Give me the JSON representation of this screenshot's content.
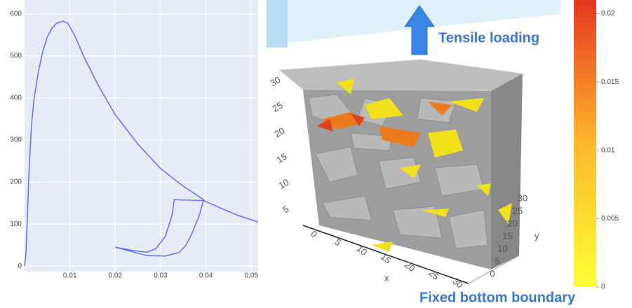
{
  "chart_data": [
    {
      "type": "line",
      "x": [
        0,
        0.0003,
        0.0006,
        0.001,
        0.0015,
        0.002,
        0.003,
        0.004,
        0.005,
        0.006,
        0.007,
        0.0085,
        0.0095,
        0.011,
        0.013,
        0.016,
        0.02,
        0.025,
        0.03,
        0.035,
        0.0395,
        0.0385,
        0.037,
        0.0355,
        0.034,
        0.031,
        0.027,
        0.02,
        0.024,
        0.027,
        0.029,
        0.031,
        0.0325,
        0.033,
        0.0395,
        0.043,
        0.047,
        0.0515
      ],
      "series": [
        {
          "color": "#636efa",
          "values": [
            0,
            30,
            110,
            230,
            330,
            390,
            460,
            510,
            545,
            565,
            577,
            583,
            578,
            550,
            500,
            435,
            360,
            290,
            232,
            190,
            158,
            120,
            80,
            48,
            32,
            24,
            25,
            45,
            37,
            33,
            42,
            70,
            120,
            158,
            156,
            139,
            121,
            105
          ]
        }
      ],
      "xlim": [
        0,
        0.0515
      ],
      "ylim": [
        -13,
        633
      ],
      "xticks": [
        0.01,
        0.02,
        0.03,
        0.04,
        0.05
      ],
      "yticks": [
        0,
        100,
        200,
        300,
        400,
        500,
        600
      ],
      "grid": true
    },
    {
      "type": "surface3d",
      "annotations": [
        "Tensile loading",
        "Fixed bottom boundary"
      ],
      "xlabel": "x",
      "ylabel": "y",
      "xticks": [
        0,
        5,
        10,
        15,
        20,
        25,
        30
      ],
      "yticks": [
        0,
        5,
        10,
        15,
        20,
        25,
        30
      ],
      "zticks": [
        5,
        10,
        15,
        20,
        25,
        30
      ],
      "clim": [
        0,
        0.021
      ],
      "cticks": [
        0,
        0.005,
        0.01,
        0.015,
        0.02
      ]
    }
  ]
}
